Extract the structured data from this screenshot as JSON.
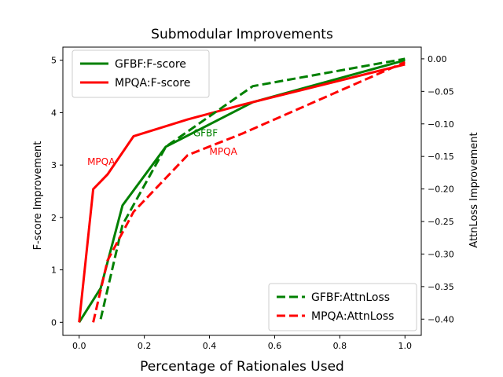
{
  "chart_data": {
    "type": "line",
    "title": "Submodular Improvements",
    "xlabel": "Percentage of Rationales Used",
    "ylabel_left": "F-score Improvement",
    "ylabel_right": "AttnLoss Improvement",
    "xlim": [
      -0.05,
      1.05
    ],
    "ylim_left": [
      -0.25,
      5.25
    ],
    "ylim_right": [
      -0.425,
      0.018
    ],
    "xticks": [
      0.0,
      0.2,
      0.4,
      0.6,
      0.8,
      1.0
    ],
    "xtick_labels": [
      "0.0",
      "0.2",
      "0.4",
      "0.6",
      "0.8",
      "1.0"
    ],
    "yticks_left": [
      0,
      1,
      2,
      3,
      4,
      5
    ],
    "ytick_labels_left": [
      "0",
      "1",
      "2",
      "3",
      "4",
      "5"
    ],
    "yticks_right": [
      0.0,
      -0.05,
      -0.1,
      -0.15,
      -0.2,
      -0.25,
      -0.3,
      -0.35,
      -0.4
    ],
    "ytick_labels_right": [
      "0.00",
      "−0.05",
      "−0.10",
      "−0.15",
      "−0.20",
      "−0.25",
      "−0.30",
      "−0.35",
      "−0.40"
    ],
    "series": [
      {
        "name": "GFBF:F-score",
        "axis": "left",
        "color": "#008000",
        "dash": "solid",
        "x": [
          0.0,
          0.066,
          0.133,
          0.266,
          0.533,
          1.0
        ],
        "y": [
          0.0,
          0.65,
          2.23,
          3.35,
          4.2,
          5.0
        ]
      },
      {
        "name": "MPQA:F-score",
        "axis": "left",
        "color": "#ff0000",
        "dash": "solid",
        "x": [
          0.0,
          0.043,
          0.087,
          0.167,
          0.333,
          0.5,
          1.0
        ],
        "y": [
          0.0,
          2.54,
          2.82,
          3.55,
          3.87,
          4.15,
          4.92
        ]
      },
      {
        "name": "GFBF:AttnLoss",
        "axis": "right",
        "color": "#008000",
        "dash": "dashed",
        "x": [
          0.066,
          0.133,
          0.266,
          0.533,
          1.0
        ],
        "y": [
          -0.4,
          -0.255,
          -0.135,
          -0.042,
          0.0
        ]
      },
      {
        "name": "MPQA:AttnLoss",
        "axis": "right",
        "color": "#ff0000",
        "dash": "dashed",
        "x": [
          0.043,
          0.087,
          0.167,
          0.333,
          0.5,
          1.0
        ],
        "y": [
          -0.405,
          -0.31,
          -0.235,
          -0.148,
          -0.115,
          -0.005
        ]
      }
    ],
    "annotations": [
      {
        "text": "MPQA",
        "x": 0.025,
        "y": 3.0,
        "axis": "left",
        "color": "#ff0000"
      },
      {
        "text": "GFBF",
        "x": 0.35,
        "y": 3.55,
        "axis": "left",
        "color": "#008000"
      },
      {
        "text": "MPQA",
        "x": 0.4,
        "y": 3.2,
        "axis": "left",
        "color": "#ff0000"
      }
    ],
    "legends": [
      {
        "placement": "top-left",
        "entries": [
          "GFBF:F-score",
          "MPQA:F-score"
        ]
      },
      {
        "placement": "bottom-right",
        "entries": [
          "GFBF:AttnLoss",
          "MPQA:AttnLoss"
        ]
      }
    ],
    "grid": false
  }
}
